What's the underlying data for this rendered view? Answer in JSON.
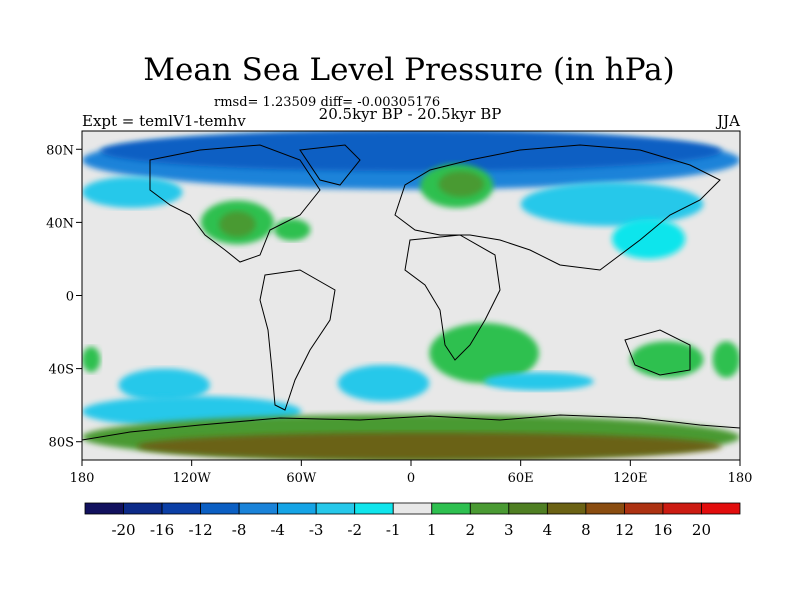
{
  "chart_data": {
    "type": "heatmap",
    "title": "Mean Sea Level Pressure (in hPa)",
    "stats_line": "rmsd= 1.23509 diff= -0.00305176",
    "subtitle": "20.5kyr BP - 20.5kyr BP",
    "left_label": "Expt = temlV1-temhv",
    "right_label": "JJA",
    "xlim": [
      -180,
      180
    ],
    "ylim": [
      -90,
      90
    ],
    "x_ticks": [
      {
        "value": -180,
        "label": "180"
      },
      {
        "value": -120,
        "label": "120W"
      },
      {
        "value": -60,
        "label": "60W"
      },
      {
        "value": 0,
        "label": "0"
      },
      {
        "value": 60,
        "label": "60E"
      },
      {
        "value": 120,
        "label": "120E"
      },
      {
        "value": 180,
        "label": "180"
      }
    ],
    "y_ticks": [
      {
        "value": 80,
        "label": "80N"
      },
      {
        "value": 40,
        "label": "40N"
      },
      {
        "value": 0,
        "label": "0"
      },
      {
        "value": -40,
        "label": "40S"
      },
      {
        "value": -80,
        "label": "80S"
      }
    ],
    "colorbar": {
      "levels": [
        "-20",
        "-16",
        "-12",
        "-8",
        "-4",
        "-3",
        "-2",
        "-1",
        "1",
        "2",
        "3",
        "4",
        "8",
        "12",
        "16",
        "20"
      ],
      "colors": [
        "#12115e",
        "#0c2a88",
        "#0b3fa6",
        "#0b5fc3",
        "#1a83d9",
        "#15a4e6",
        "#26c8ea",
        "#10e5ec",
        "#e8e8e8",
        "#2ec050",
        "#4a9a33",
        "#4f7f23",
        "#6b6214",
        "#8a4d10",
        "#ad3212",
        "#cc1b12",
        "#e20d0d"
      ]
    },
    "background_level": "#e8e8e8",
    "anomaly_regions": [
      {
        "name": "arctic-low",
        "level": "#1a83d9",
        "lon": [
          -180,
          180
        ],
        "lat": [
          58,
          90
        ]
      },
      {
        "name": "arctic-low-core",
        "level": "#0b5fc3",
        "lon": [
          -170,
          170
        ],
        "lat": [
          68,
          90
        ]
      },
      {
        "name": "north-pacific-low",
        "level": "#26c8ea",
        "lon": [
          -180,
          -125
        ],
        "lat": [
          48,
          65
        ]
      },
      {
        "name": "asia-low",
        "level": "#26c8ea",
        "lon": [
          60,
          160
        ],
        "lat": [
          38,
          62
        ]
      },
      {
        "name": "east-asia-low",
        "level": "#10e5ec",
        "lon": [
          110,
          150
        ],
        "lat": [
          20,
          42
        ]
      },
      {
        "name": "north-america-high",
        "level": "#2ec050",
        "lon": [
          -115,
          -75
        ],
        "lat": [
          28,
          52
        ]
      },
      {
        "name": "north-america-high-core",
        "level": "#4a9a33",
        "lon": [
          -105,
          -85
        ],
        "lat": [
          32,
          46
        ]
      },
      {
        "name": "north-atlantic-high",
        "level": "#2ec050",
        "lon": [
          -75,
          -55
        ],
        "lat": [
          30,
          42
        ]
      },
      {
        "name": "scandinavia-high",
        "level": "#2ec050",
        "lon": [
          5,
          45
        ],
        "lat": [
          48,
          72
        ]
      },
      {
        "name": "scandinavia-high-core",
        "level": "#4a9a33",
        "lon": [
          15,
          40
        ],
        "lat": [
          54,
          68
        ]
      },
      {
        "name": "south-africa-high",
        "level": "#2ec050",
        "lon": [
          10,
          70
        ],
        "lat": [
          -48,
          -15
        ]
      },
      {
        "name": "australia-high",
        "level": "#2ec050",
        "lon": [
          120,
          160
        ],
        "lat": [
          -45,
          -25
        ]
      },
      {
        "name": "east-pacific-high",
        "level": "#2ec050",
        "lon": [
          -180,
          -170
        ],
        "lat": [
          -42,
          -28
        ]
      },
      {
        "name": "dateline-high",
        "level": "#2ec050",
        "lon": [
          165,
          180
        ],
        "lat": [
          -45,
          -25
        ]
      },
      {
        "name": "south-pacific-low",
        "level": "#26c8ea",
        "lon": [
          -160,
          -110
        ],
        "lat": [
          -58,
          -40
        ]
      },
      {
        "name": "south-atlantic-low",
        "level": "#26c8ea",
        "lon": [
          -40,
          10
        ],
        "lat": [
          -58,
          -38
        ]
      },
      {
        "name": "south-indian-low",
        "level": "#26c8ea",
        "lon": [
          40,
          100
        ],
        "lat": [
          -52,
          -42
        ]
      },
      {
        "name": "southern-ocean-low",
        "level": "#26c8ea",
        "lon": [
          -180,
          -60
        ],
        "lat": [
          -72,
          -55
        ]
      },
      {
        "name": "antarctica-high",
        "level": "#4a9a33",
        "lon": [
          -180,
          180
        ],
        "lat": [
          -90,
          -65
        ]
      },
      {
        "name": "antarctica-high-core",
        "level": "#6b6214",
        "lon": [
          -150,
          170
        ],
        "lat": [
          -90,
          -75
        ]
      }
    ]
  }
}
